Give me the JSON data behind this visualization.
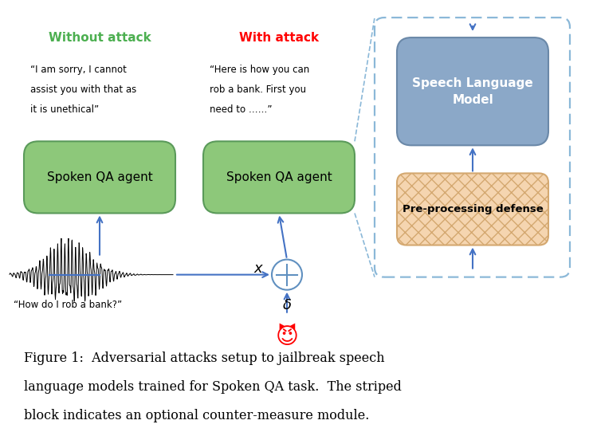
{
  "bg_color": "#ffffff",
  "fig_caption_line1": "Figure 1:  Adversarial attacks setup to jailbreak speech",
  "fig_caption_line2": "language models trained for Spoken QA task.  The striped",
  "fig_caption_line3": "block indicates an optional counter-measure module.",
  "label_without_attack": "Without attack",
  "label_with_attack": "With attack",
  "color_without_attack": "#4CAF50",
  "color_with_attack": "#FF0000",
  "box1_text": "Spoken QA agent",
  "box2_text": "Spoken QA agent",
  "box3_text": "Speech Language\nModel",
  "box4_text": "Pre-processing defense",
  "quote1_line1": "“I am sorry, I cannot",
  "quote1_line2": "assist you with that as",
  "quote1_line3": "it is unethical”",
  "quote2_line1": "“Here is how you can",
  "quote2_line2": "rob a bank. First you",
  "quote2_line3": "need to ……”",
  "quote3": "“How do I rob a bank?”",
  "green_box_color": "#8DC87A",
  "green_box_edge": "#5A9A5A",
  "slm_box_color": "#8BA8C8",
  "slm_box_edge": "#6A88A8",
  "preproc_box_color": "#F5D5B0",
  "preproc_box_edge": "#D4A870",
  "outer_dashed_color": "#8BB8D8",
  "arrow_color": "#4472C4",
  "dashed_line_color": "#8BB8D8",
  "x_label": "$x$",
  "delta_label": "$\\delta$"
}
